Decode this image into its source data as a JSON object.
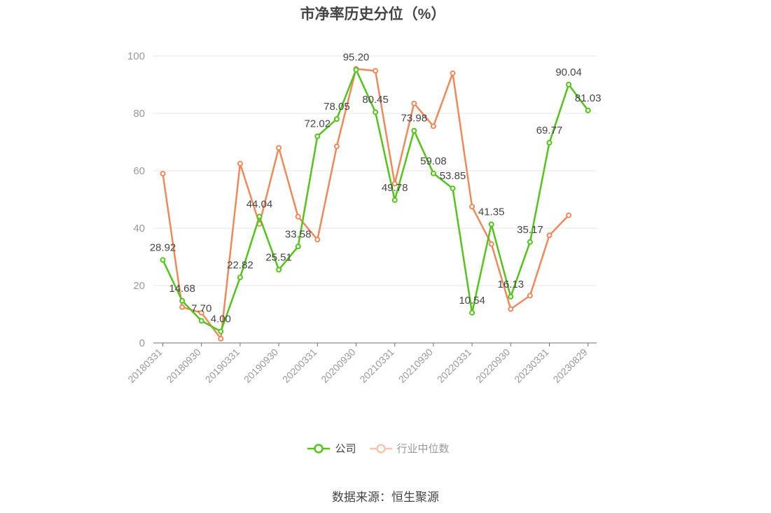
{
  "chart_data": {
    "type": "line",
    "title": "市净率历史分位（%）",
    "x_tick_labels": [
      "20180331",
      "20180930",
      "20190331",
      "20190930",
      "20200331",
      "20200930",
      "20210331",
      "20210930",
      "20220331",
      "20220930",
      "20230331",
      "20230829"
    ],
    "x_tick_positions": [
      0,
      2,
      4,
      6,
      8,
      10,
      12,
      14,
      16,
      18,
      20,
      22
    ],
    "ylim": [
      0,
      100
    ],
    "y_ticks": [
      0,
      20,
      40,
      60,
      80,
      100
    ],
    "grid": true,
    "legend_position": "bottom",
    "series": [
      {
        "name": "公司",
        "color": "#52c41a",
        "values": [
          28.92,
          14.68,
          7.7,
          4.0,
          22.82,
          44.04,
          25.51,
          33.58,
          72.02,
          78.05,
          95.2,
          80.45,
          49.78,
          73.98,
          59.08,
          53.85,
          10.54,
          41.35,
          16.13,
          35.17,
          69.77,
          90.04,
          81.03
        ],
        "labels": [
          "28.92",
          "14.68",
          "7.70",
          "4.00",
          "22.82",
          "44.04",
          "25.51",
          "33.58",
          "72.02",
          "78.05",
          "95.20",
          "80.45",
          "49.78",
          "73.98",
          "59.08",
          "53.85",
          "10.54",
          "41.35",
          "16.13",
          "35.17",
          "69.77",
          "90.04",
          "81.03"
        ]
      },
      {
        "name": "行业中位数",
        "color": "#f0895a",
        "values": [
          59,
          12.5,
          10.5,
          1.5,
          62.5,
          41.5,
          68,
          44,
          36,
          68.5,
          95.5,
          94.8,
          55.5,
          83.5,
          75.5,
          94,
          47.5,
          34.5,
          11.8,
          16.5,
          37.5,
          44.5,
          null
        ]
      }
    ]
  },
  "source": "数据来源：恒生聚源"
}
